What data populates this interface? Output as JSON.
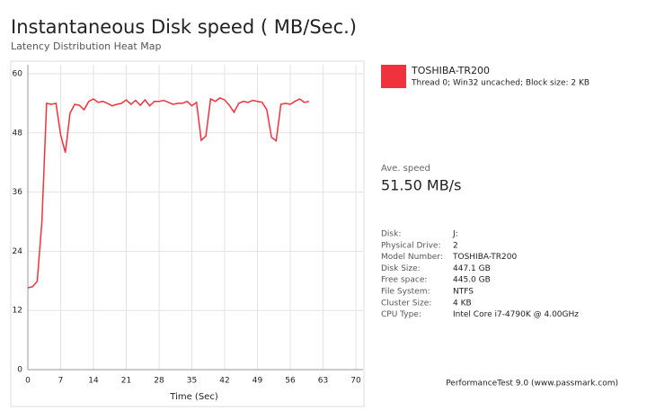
{
  "chart_data": {
    "type": "line",
    "title": "Instantaneous Disk speed ( MB/Sec.)",
    "subtitle": "Latency Distribution Heat Map",
    "x_label": "Time (Sec)",
    "x": [
      0,
      1,
      2,
      3,
      4,
      5,
      6,
      7,
      8,
      9,
      10,
      11,
      12,
      13,
      14,
      15,
      16,
      17,
      18,
      19,
      20,
      21,
      22,
      23,
      24,
      25,
      26,
      27,
      28,
      29,
      30,
      31,
      32,
      33,
      34,
      35,
      36,
      37,
      38,
      39,
      40,
      41,
      42,
      43,
      44,
      45,
      46,
      47,
      48,
      49,
      50,
      51,
      52,
      53,
      54,
      55,
      56,
      57,
      58,
      59,
      60
    ],
    "series": [
      {
        "name": "TOSHIBA-TR200",
        "description": "Thread 0; Win32 uncached; Block size: 2 KB",
        "color": "#f0323c",
        "values": [
          16.6,
          16.8,
          17.9,
          30,
          54,
          53.8,
          54,
          47.6,
          44,
          52,
          53.8,
          53.6,
          52.7,
          54.4,
          54.9,
          54.2,
          54.4,
          54,
          53.5,
          53.8,
          54,
          54.7,
          53.8,
          54.6,
          53.6,
          54.7,
          53.5,
          54.4,
          54.4,
          54.6,
          54.2,
          53.8,
          54,
          54,
          54.4,
          53.5,
          54.2,
          46.5,
          47.4,
          54.9,
          54.4,
          55.1,
          54.7,
          53.6,
          52.2,
          54,
          54.4,
          54.2,
          54.6,
          54.4,
          54.2,
          52.7,
          47.1,
          46.4,
          53.8,
          54,
          53.8,
          54.4,
          54.9,
          54.2,
          54.4
        ]
      }
    ],
    "xlim": [
      0,
      70
    ],
    "ylim": [
      0,
      60
    ],
    "xticks": [
      0,
      7,
      14,
      21,
      28,
      35,
      42,
      49,
      56,
      63,
      70
    ],
    "yticks": [
      0,
      12,
      24,
      36,
      48,
      60
    ],
    "grid": true
  },
  "info_panel": {
    "avg_label": "Ave. speed",
    "avg_value": "51.50 MB/s",
    "rows": [
      [
        "Disk:",
        "J:"
      ],
      [
        "Physical Drive:",
        "2"
      ],
      [
        "Model Number:",
        "TOSHIBA-TR200"
      ],
      [
        "Disk Size:",
        "447.1 GB"
      ],
      [
        "Free space:",
        "445.0 GB"
      ],
      [
        "File System:",
        "NTFS"
      ],
      [
        "Cluster Size:",
        "4 KB"
      ],
      [
        "CPU Type:",
        "Intel Core i7-4790K @ 4.00GHz"
      ]
    ]
  },
  "footer": "PerformanceTest 9.0 (www.passmark.com)"
}
